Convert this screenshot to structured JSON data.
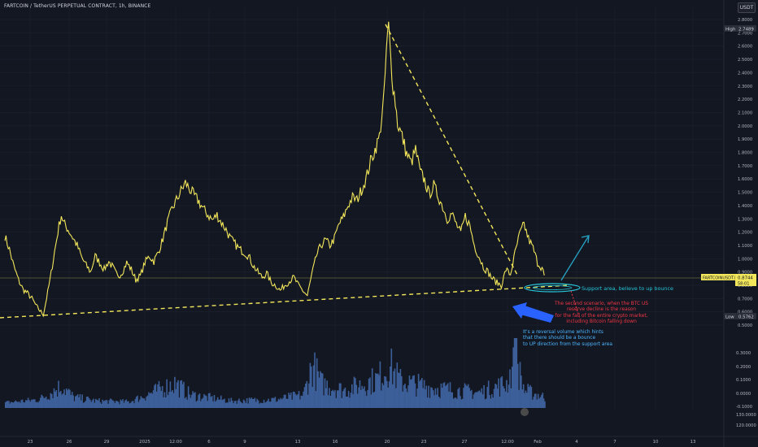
{
  "header": {
    "title": "FARTCOIN / TetherUS PERPETUAL CONTRACT, 1h, BINANCE",
    "unit_button": "USDT"
  },
  "annotations": {
    "support": "Support area, believe to up bounce",
    "scenario": "The second scenario, when the BTC US\nreserve decline is the reason\nfor the fall of the entire crypto market,\nincluding Bitcoin falling down",
    "volume": "It's a reversal volume which hints\nthat there should be a bounce\nto UP direction from the support area"
  },
  "markers": {
    "high_label": "High",
    "high_value": "2.7489",
    "low_label": "Low",
    "low_value": "0.5762",
    "symbol_label": "FARTCOINUSDT.P",
    "last_price": "0.8744",
    "countdown": "58:01"
  },
  "colors": {
    "background": "#131722",
    "price": "#f2e65a",
    "volume": "#3d5f99",
    "trendline": "#f2e65a",
    "support_marker": "#26c6da",
    "red_note": "#f23645",
    "blue_arrow": "#2962ff",
    "grid": "#1e2230"
  },
  "chart_data": [
    {
      "type": "line",
      "name": "price",
      "x_categories": [
        "23",
        "26",
        "29",
        "2025",
        "12:00",
        "6",
        "9",
        "13",
        "16",
        "20",
        "23",
        "27",
        "12:00",
        "Feb",
        "4",
        "7",
        "10",
        "13"
      ],
      "y_ticks": [
        "2.8000",
        "2.7000",
        "2.6000",
        "2.5000",
        "2.4000",
        "2.3000",
        "2.2000",
        "2.1000",
        "2.0000",
        "1.9000",
        "1.8000",
        "1.7000",
        "1.6000",
        "1.5000",
        "1.4000",
        "1.3000",
        "1.2000",
        "1.1000",
        "1.0000",
        "0.9000",
        "0.8000",
        "0.7000",
        "0.6000",
        "0.5000"
      ],
      "ylim": [
        0.5,
        2.85
      ],
      "xlim": [
        0,
        240
      ],
      "points": [
        [
          0,
          1.17
        ],
        [
          2,
          1.07
        ],
        [
          4,
          0.94
        ],
        [
          6,
          0.84
        ],
        [
          8,
          0.77
        ],
        [
          10,
          0.74
        ],
        [
          12,
          0.7
        ],
        [
          14,
          0.64
        ],
        [
          16,
          0.6
        ],
        [
          17,
          0.58
        ],
        [
          18,
          0.66
        ],
        [
          20,
          0.84
        ],
        [
          22,
          1.05
        ],
        [
          24,
          1.25
        ],
        [
          25,
          1.33
        ],
        [
          26,
          1.27
        ],
        [
          28,
          1.22
        ],
        [
          30,
          1.16
        ],
        [
          32,
          1.1
        ],
        [
          34,
          1.01
        ],
        [
          36,
          0.95
        ],
        [
          38,
          0.9
        ],
        [
          40,
          1.02
        ],
        [
          42,
          0.97
        ],
        [
          44,
          0.92
        ],
        [
          46,
          0.98
        ],
        [
          48,
          0.93
        ],
        [
          50,
          0.86
        ],
        [
          52,
          0.9
        ],
        [
          54,
          0.97
        ],
        [
          56,
          0.92
        ],
        [
          58,
          0.84
        ],
        [
          60,
          0.87
        ],
        [
          62,
          0.97
        ],
        [
          64,
          1.02
        ],
        [
          66,
          0.98
        ],
        [
          68,
          1.05
        ],
        [
          70,
          1.15
        ],
        [
          72,
          1.27
        ],
        [
          74,
          1.37
        ],
        [
          76,
          1.44
        ],
        [
          78,
          1.51
        ],
        [
          80,
          1.57
        ],
        [
          82,
          1.52
        ],
        [
          84,
          1.47
        ],
        [
          86,
          1.43
        ],
        [
          88,
          1.37
        ],
        [
          90,
          1.33
        ],
        [
          92,
          1.29
        ],
        [
          94,
          1.33
        ],
        [
          96,
          1.27
        ],
        [
          98,
          1.22
        ],
        [
          100,
          1.15
        ],
        [
          102,
          1.11
        ],
        [
          104,
          1.07
        ],
        [
          106,
          1.05
        ],
        [
          108,
          1.02
        ],
        [
          110,
          0.95
        ],
        [
          112,
          0.9
        ],
        [
          114,
          0.86
        ],
        [
          116,
          0.89
        ],
        [
          118,
          0.82
        ],
        [
          120,
          0.8
        ],
        [
          122,
          0.76
        ],
        [
          124,
          0.8
        ],
        [
          126,
          0.83
        ],
        [
          128,
          0.86
        ],
        [
          130,
          0.8
        ],
        [
          132,
          0.76
        ],
        [
          134,
          0.72
        ],
        [
          136,
          0.88
        ],
        [
          138,
          1.02
        ],
        [
          140,
          1.1
        ],
        [
          142,
          1.14
        ],
        [
          144,
          1.1
        ],
        [
          146,
          1.15
        ],
        [
          148,
          1.26
        ],
        [
          150,
          1.31
        ],
        [
          152,
          1.4
        ],
        [
          154,
          1.46
        ],
        [
          156,
          1.44
        ],
        [
          158,
          1.52
        ],
        [
          160,
          1.6
        ],
        [
          162,
          1.73
        ],
        [
          164,
          1.82
        ],
        [
          166,
          1.92
        ],
        [
          168,
          2.22
        ],
        [
          169,
          2.56
        ],
        [
          170,
          2.75
        ],
        [
          171,
          2.5
        ],
        [
          172,
          2.3
        ],
        [
          173,
          2.18
        ],
        [
          174,
          2.02
        ],
        [
          176,
          1.92
        ],
        [
          178,
          1.79
        ],
        [
          180,
          1.72
        ],
        [
          182,
          1.82
        ],
        [
          184,
          1.65
        ],
        [
          186,
          1.59
        ],
        [
          188,
          1.48
        ],
        [
          190,
          1.55
        ],
        [
          192,
          1.47
        ],
        [
          194,
          1.39
        ],
        [
          196,
          1.3
        ],
        [
          198,
          1.34
        ],
        [
          200,
          1.26
        ],
        [
          202,
          1.19
        ],
        [
          204,
          1.32
        ],
        [
          206,
          1.25
        ],
        [
          208,
          1.1
        ],
        [
          210,
          1.02
        ],
        [
          212,
          0.94
        ],
        [
          214,
          0.9
        ],
        [
          216,
          0.85
        ],
        [
          218,
          0.82
        ],
        [
          220,
          0.8
        ],
        [
          222,
          0.92
        ],
        [
          224,
          0.88
        ],
        [
          226,
          1.04
        ],
        [
          228,
          1.18
        ],
        [
          230,
          1.26
        ],
        [
          232,
          1.15
        ],
        [
          234,
          1.08
        ],
        [
          236,
          0.97
        ],
        [
          238,
          0.93
        ],
        [
          239,
          0.874
        ]
      ]
    },
    {
      "type": "bar",
      "name": "volume",
      "y_ticks": [
        "0.3000",
        "0.2000",
        "0.1000",
        "0.0000",
        "-0.1000",
        "130.0000",
        "120.0000"
      ],
      "profile": [
        [
          0,
          0.08
        ],
        [
          15,
          0.15
        ],
        [
          25,
          0.45
        ],
        [
          30,
          0.2
        ],
        [
          40,
          0.12
        ],
        [
          55,
          0.1
        ],
        [
          60,
          0.2
        ],
        [
          75,
          0.5
        ],
        [
          82,
          0.25
        ],
        [
          100,
          0.12
        ],
        [
          120,
          0.15
        ],
        [
          132,
          0.25
        ],
        [
          136,
          0.9
        ],
        [
          140,
          0.5
        ],
        [
          150,
          0.35
        ],
        [
          165,
          0.6
        ],
        [
          170,
          0.9
        ],
        [
          175,
          0.55
        ],
        [
          190,
          0.4
        ],
        [
          210,
          0.3
        ],
        [
          222,
          0.5
        ],
        [
          226,
          1.0
        ],
        [
          230,
          0.35
        ],
        [
          239,
          0.2
        ]
      ]
    }
  ]
}
